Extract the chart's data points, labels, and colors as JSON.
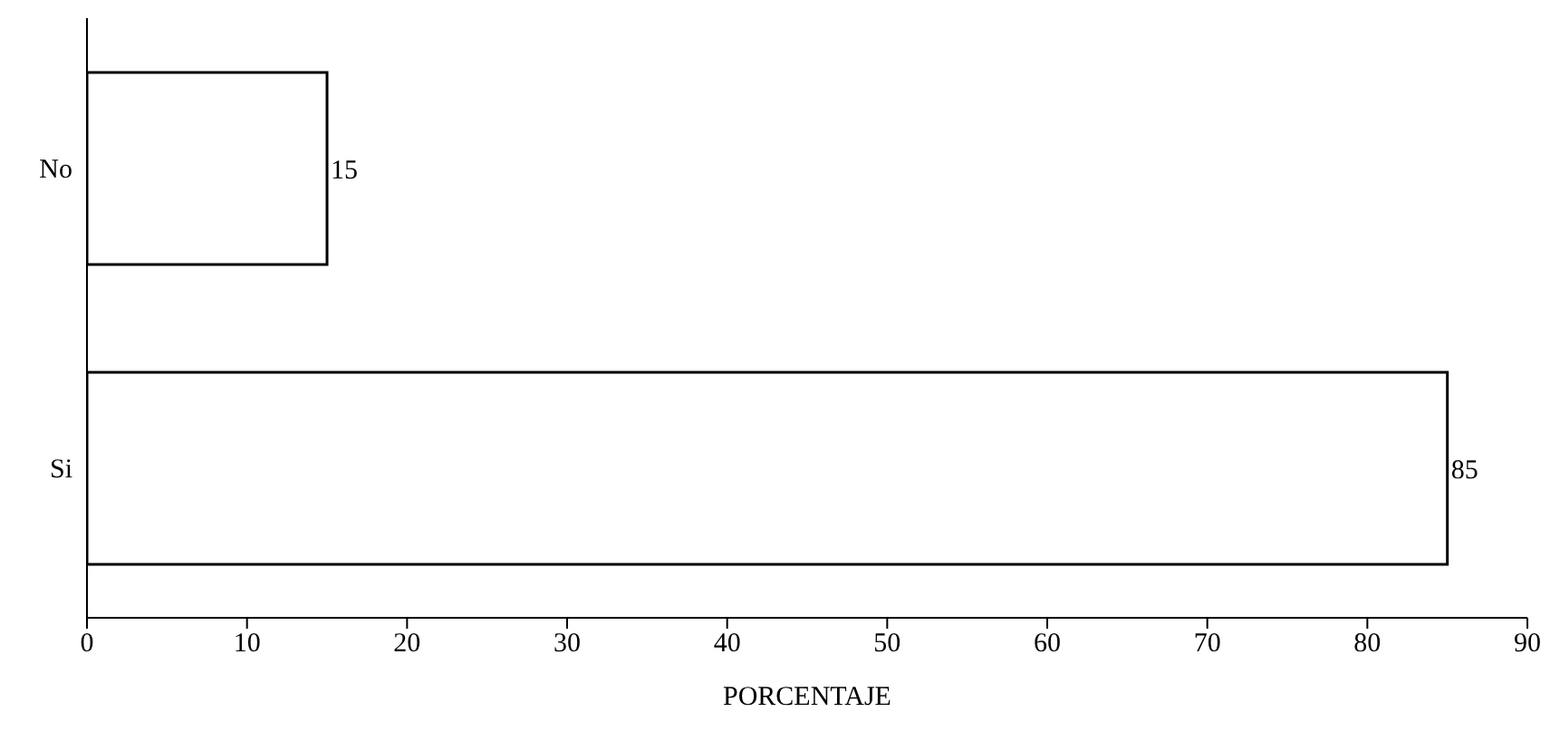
{
  "chart_data": {
    "type": "bar",
    "orientation": "horizontal",
    "categories": [
      "No",
      "Si"
    ],
    "values": [
      15,
      85
    ],
    "color": "#ffffff",
    "xlabel": "PORCENTAJE",
    "xlim": [
      0,
      90
    ],
    "xticks": [
      0,
      10,
      20,
      30,
      40,
      50,
      60,
      70,
      80,
      90
    ],
    "data_labels": true,
    "grid": false,
    "legend": false
  }
}
